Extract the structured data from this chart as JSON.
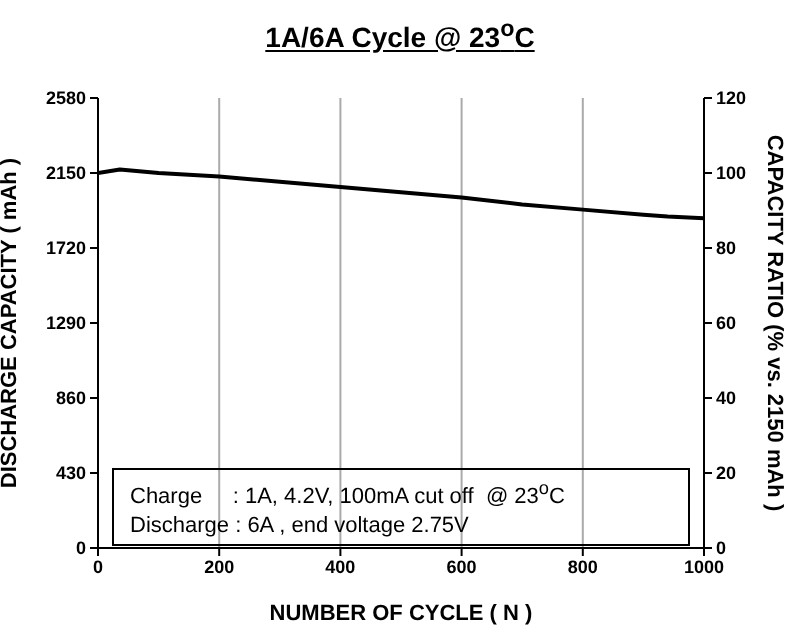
{
  "chart_data": {
    "type": "line",
    "title": "1A/6A Cycle @ 23$^{o}$C",
    "xlabel": "NUMBER OF CYCLE ( N )",
    "ylabel": "DISCHARGE CAPACITY ( mAh )",
    "y2label": "CAPACITY RATIO (% vs. 2150 mAh )",
    "x": [
      0,
      36,
      100,
      200,
      300,
      400,
      500,
      600,
      700,
      800,
      900,
      940,
      1000
    ],
    "series": [
      {
        "color": "#000000",
        "values": [
          2150,
          2170,
          2150,
          2130,
          2100,
          2070,
          2040,
          2010,
          1970,
          1940,
          1910,
          1900,
          1890
        ]
      }
    ],
    "xlim": [
      0,
      1000
    ],
    "xticks": [
      0,
      200,
      400,
      600,
      800,
      1000
    ],
    "ylim": [
      0,
      2580
    ],
    "yticks": [
      0,
      430,
      860,
      1290,
      1720,
      2150,
      2580
    ],
    "y2lim": [
      0,
      120
    ],
    "y2ticks": [
      0,
      20,
      40,
      60,
      80,
      100,
      120
    ],
    "grid": "x",
    "marker": "none",
    "line_style": "solid",
    "legend": false,
    "annotations": [
      "Charge     : 1A, 4.2V, 100mA cut off  @ 23$^{o}$C",
      "Discharge : 6A , end voltage 2.75V"
    ]
  }
}
